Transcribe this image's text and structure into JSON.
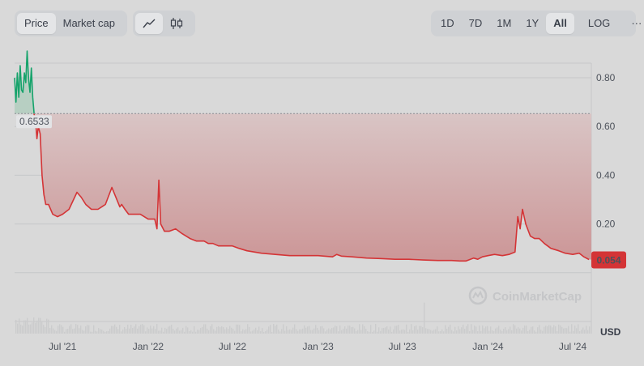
{
  "toolbar": {
    "price_label": "Price",
    "market_cap_label": "Market cap",
    "line_icon": "line-chart-icon",
    "candle_icon": "candlestick-icon",
    "ranges": [
      "1D",
      "7D",
      "1M",
      "1Y",
      "All"
    ],
    "active_range": "All",
    "log_label": "LOG",
    "more_label": "···"
  },
  "colors": {
    "up": "#16a36b",
    "down": "#d43436",
    "badge": "#d43436",
    "grid": "#c6c7c9"
  },
  "chart_data": {
    "type": "area",
    "currency_label": "USD",
    "watermark": "CoinMarketCap",
    "reference_line": {
      "value": 0.6533,
      "label": "0.6533"
    },
    "current_price_label": "0.054",
    "y_ticks": [
      0.2,
      0.4,
      0.6,
      0.8
    ],
    "y_tick_labels": [
      "0.20",
      "0.40",
      "0.60",
      "0.80"
    ],
    "ylim": [
      -0.25,
      0.86
    ],
    "x_ticks": [
      "2021-07-01",
      "2022-01-01",
      "2022-07-01",
      "2023-01-01",
      "2023-07-01",
      "2024-01-01",
      "2024-07-01"
    ],
    "x_tick_labels": [
      "Jul '21",
      "Jan '22",
      "Jul '22",
      "Jan '23",
      "Jul '23",
      "Jan '24",
      "Jul '24"
    ],
    "xlim": [
      "2021-03-20",
      "2024-08-10"
    ],
    "grid": true,
    "series": [
      {
        "x": [
          "2021-03-20",
          "2021-03-23",
          "2021-03-26",
          "2021-03-29",
          "2021-04-01",
          "2021-04-04",
          "2021-04-07",
          "2021-04-10",
          "2021-04-13",
          "2021-04-16",
          "2021-04-19",
          "2021-04-22",
          "2021-04-25",
          "2021-04-28",
          "2021-05-01",
          "2021-05-04",
          "2021-05-07",
          "2021-05-10",
          "2021-05-14",
          "2021-05-18",
          "2021-05-22",
          "2021-05-26",
          "2021-06-01",
          "2021-06-10",
          "2021-06-20",
          "2021-07-01",
          "2021-07-15",
          "2021-08-01",
          "2021-08-10",
          "2021-08-20",
          "2021-09-01",
          "2021-09-15",
          "2021-10-01",
          "2021-10-15",
          "2021-11-01",
          "2021-11-05",
          "2021-11-12",
          "2021-11-20",
          "2021-12-01",
          "2021-12-15",
          "2022-01-01",
          "2022-01-15",
          "2022-01-20",
          "2022-01-24",
          "2022-01-28",
          "2022-02-05",
          "2022-02-15",
          "2022-03-01",
          "2022-03-15",
          "2022-04-01",
          "2022-04-15",
          "2022-05-01",
          "2022-05-10",
          "2022-05-20",
          "2022-06-01",
          "2022-06-15",
          "2022-07-01",
          "2022-07-15",
          "2022-08-01",
          "2022-09-01",
          "2022-10-01",
          "2022-11-01",
          "2022-12-01",
          "2023-01-01",
          "2023-02-01",
          "2023-02-10",
          "2023-02-20",
          "2023-03-15",
          "2023-04-15",
          "2023-05-15",
          "2023-06-15",
          "2023-07-15",
          "2023-08-15",
          "2023-09-15",
          "2023-10-15",
          "2023-11-01",
          "2023-11-15",
          "2023-12-01",
          "2023-12-10",
          "2023-12-20",
          "2024-01-01",
          "2024-01-15",
          "2024-02-01",
          "2024-02-15",
          "2024-02-28",
          "2024-03-05",
          "2024-03-10",
          "2024-03-15",
          "2024-03-22",
          "2024-04-01",
          "2024-04-10",
          "2024-04-20",
          "2024-05-01",
          "2024-05-15",
          "2024-06-01",
          "2024-06-15",
          "2024-07-01",
          "2024-07-15",
          "2024-07-25",
          "2024-08-05"
        ],
        "y": [
          0.8,
          0.7,
          0.82,
          0.72,
          0.85,
          0.75,
          0.74,
          0.82,
          0.78,
          0.91,
          0.8,
          0.74,
          0.84,
          0.72,
          0.65,
          0.62,
          0.55,
          0.6,
          0.57,
          0.4,
          0.32,
          0.28,
          0.28,
          0.24,
          0.23,
          0.24,
          0.26,
          0.33,
          0.31,
          0.28,
          0.26,
          0.26,
          0.28,
          0.35,
          0.27,
          0.28,
          0.26,
          0.24,
          0.24,
          0.24,
          0.22,
          0.22,
          0.18,
          0.38,
          0.2,
          0.17,
          0.17,
          0.18,
          0.16,
          0.14,
          0.13,
          0.13,
          0.12,
          0.12,
          0.11,
          0.11,
          0.11,
          0.1,
          0.09,
          0.08,
          0.075,
          0.07,
          0.07,
          0.07,
          0.065,
          0.075,
          0.068,
          0.065,
          0.06,
          0.058,
          0.055,
          0.055,
          0.052,
          0.05,
          0.05,
          0.048,
          0.048,
          0.06,
          0.055,
          0.065,
          0.07,
          0.075,
          0.07,
          0.075,
          0.085,
          0.23,
          0.18,
          0.26,
          0.2,
          0.15,
          0.14,
          0.14,
          0.12,
          0.1,
          0.09,
          0.08,
          0.075,
          0.08,
          0.065,
          0.054
        ]
      }
    ]
  }
}
